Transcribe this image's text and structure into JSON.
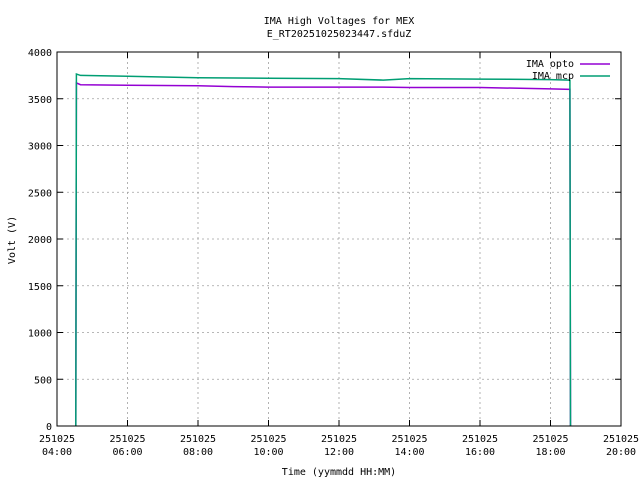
{
  "chart_data": {
    "type": "line",
    "title": "IMA High Voltages for MEX",
    "subtitle": "E_RT20251025023447.sfduZ",
    "xlabel": "Time (yymmdd HH:MM)",
    "ylabel": "Volt (V)",
    "xlim": [
      "251025 04:00",
      "251025 20:00"
    ],
    "ylim": [
      0,
      4000
    ],
    "grid": true,
    "legend_position": "top-right",
    "x_ticks": [
      {
        "date": "251025",
        "time": "04:00"
      },
      {
        "date": "251025",
        "time": "06:00"
      },
      {
        "date": "251025",
        "time": "08:00"
      },
      {
        "date": "251025",
        "time": "10:00"
      },
      {
        "date": "251025",
        "time": "12:00"
      },
      {
        "date": "251025",
        "time": "14:00"
      },
      {
        "date": "251025",
        "time": "16:00"
      },
      {
        "date": "251025",
        "time": "18:00"
      },
      {
        "date": "251025",
        "time": "20:00"
      }
    ],
    "y_ticks": [
      0,
      500,
      1000,
      1500,
      2000,
      2500,
      3000,
      3500,
      4000
    ],
    "series": [
      {
        "name": "IMA opto",
        "color": "#9400d3",
        "points": [
          [
            "04:32",
            0
          ],
          [
            "04:33",
            3670
          ],
          [
            "04:40",
            3650
          ],
          [
            "06:00",
            3645
          ],
          [
            "08:00",
            3640
          ],
          [
            "09:00",
            3630
          ],
          [
            "10:00",
            3625
          ],
          [
            "12:00",
            3625
          ],
          [
            "13:15",
            3625
          ],
          [
            "14:00",
            3620
          ],
          [
            "16:00",
            3620
          ],
          [
            "18:00",
            3605
          ],
          [
            "18:33",
            3600
          ],
          [
            "18:34",
            0
          ]
        ]
      },
      {
        "name": "IMA mcp",
        "color": "#009e73",
        "points": [
          [
            "04:32",
            0
          ],
          [
            "04:33",
            3765
          ],
          [
            "04:40",
            3750
          ],
          [
            "06:00",
            3740
          ],
          [
            "08:00",
            3725
          ],
          [
            "10:00",
            3720
          ],
          [
            "12:00",
            3715
          ],
          [
            "13:15",
            3700
          ],
          [
            "14:00",
            3715
          ],
          [
            "16:00",
            3710
          ],
          [
            "18:00",
            3705
          ],
          [
            "18:33",
            3700
          ],
          [
            "18:34",
            0
          ]
        ]
      }
    ]
  }
}
